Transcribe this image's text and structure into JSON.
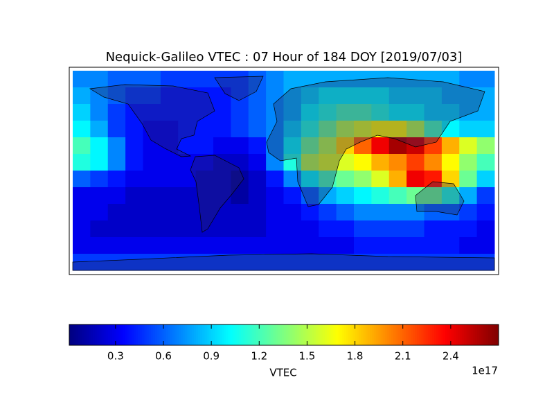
{
  "chart_data": {
    "type": "heatmap",
    "title": "Nequick-Galileo VTEC : 07 Hour of 184 DOY [2019/07/03]",
    "colormap": "jet",
    "values": [
      [
        0.7,
        0.7,
        0.6,
        0.6,
        0.6,
        0.5,
        0.5,
        0.5,
        0.5,
        0.5,
        0.6,
        0.7,
        0.8,
        0.8,
        0.8,
        0.8,
        0.8,
        0.8,
        0.8,
        0.8,
        0.8,
        0.8,
        0.7,
        0.7
      ],
      [
        0.8,
        0.7,
        0.6,
        0.5,
        0.5,
        0.4,
        0.4,
        0.4,
        0.4,
        0.5,
        0.6,
        0.7,
        0.8,
        0.9,
        1.0,
        1.0,
        1.0,
        1.0,
        0.9,
        0.9,
        0.9,
        0.8,
        0.8,
        0.8
      ],
      [
        0.9,
        0.7,
        0.5,
        0.4,
        0.4,
        0.4,
        0.4,
        0.4,
        0.4,
        0.5,
        0.6,
        0.7,
        0.8,
        1.0,
        1.1,
        1.2,
        1.2,
        1.1,
        1.0,
        1.0,
        0.9,
        0.9,
        0.8,
        0.8
      ],
      [
        1.0,
        0.8,
        0.5,
        0.4,
        0.3,
        0.3,
        0.4,
        0.4,
        0.4,
        0.5,
        0.6,
        0.7,
        0.9,
        1.1,
        1.3,
        1.5,
        1.6,
        1.7,
        1.7,
        1.5,
        1.2,
        1.0,
        0.9,
        0.9
      ],
      [
        1.2,
        1.0,
        0.7,
        0.4,
        0.3,
        0.3,
        0.4,
        0.4,
        0.3,
        0.3,
        0.4,
        0.7,
        1.0,
        1.3,
        1.5,
        1.8,
        2.1,
        2.4,
        2.6,
        2.5,
        2.2,
        1.9,
        1.6,
        1.4
      ],
      [
        1.1,
        1.0,
        0.7,
        0.4,
        0.3,
        0.3,
        0.3,
        0.3,
        0.2,
        0.2,
        0.3,
        0.7,
        1.1,
        1.5,
        1.6,
        1.6,
        1.7,
        1.9,
        2.0,
        2.2,
        2.0,
        1.7,
        1.4,
        1.2
      ],
      [
        0.6,
        0.5,
        0.4,
        0.3,
        0.3,
        0.3,
        0.3,
        0.2,
        0.2,
        0.1,
        0.2,
        0.4,
        0.7,
        1.0,
        1.2,
        1.3,
        1.4,
        1.6,
        1.9,
        2.4,
        2.3,
        1.8,
        1.3,
        0.9
      ],
      [
        0.3,
        0.3,
        0.3,
        0.2,
        0.2,
        0.2,
        0.2,
        0.2,
        0.2,
        0.1,
        0.2,
        0.3,
        0.4,
        0.6,
        0.8,
        0.9,
        1.0,
        1.1,
        1.2,
        1.3,
        1.3,
        1.1,
        0.8,
        0.5
      ],
      [
        0.3,
        0.3,
        0.2,
        0.2,
        0.2,
        0.2,
        0.2,
        0.2,
        0.2,
        0.2,
        0.2,
        0.3,
        0.3,
        0.4,
        0.5,
        0.6,
        0.7,
        0.7,
        0.7,
        0.7,
        0.6,
        0.6,
        0.5,
        0.4
      ],
      [
        0.3,
        0.2,
        0.2,
        0.2,
        0.2,
        0.2,
        0.2,
        0.2,
        0.2,
        0.2,
        0.2,
        0.3,
        0.3,
        0.3,
        0.4,
        0.4,
        0.5,
        0.5,
        0.5,
        0.5,
        0.4,
        0.4,
        0.4,
        0.3
      ],
      [
        0.3,
        0.3,
        0.3,
        0.3,
        0.3,
        0.3,
        0.3,
        0.3,
        0.3,
        0.3,
        0.3,
        0.3,
        0.3,
        0.3,
        0.3,
        0.3,
        0.4,
        0.4,
        0.4,
        0.4,
        0.4,
        0.4,
        0.3,
        0.3
      ],
      [
        0.5,
        0.5,
        0.5,
        0.5,
        0.5,
        0.5,
        0.5,
        0.5,
        0.5,
        0.5,
        0.5,
        0.5,
        0.5,
        0.5,
        0.5,
        0.5,
        0.5,
        0.5,
        0.5,
        0.5,
        0.5,
        0.5,
        0.5,
        0.5
      ]
    ],
    "colorbar": {
      "label": "VTEC",
      "offset_label": "1e17",
      "lim": [
        0.01,
        2.7
      ],
      "ticks": [
        0.3,
        0.6,
        0.9,
        1.2,
        1.5,
        1.8,
        2.1,
        2.4
      ]
    }
  }
}
